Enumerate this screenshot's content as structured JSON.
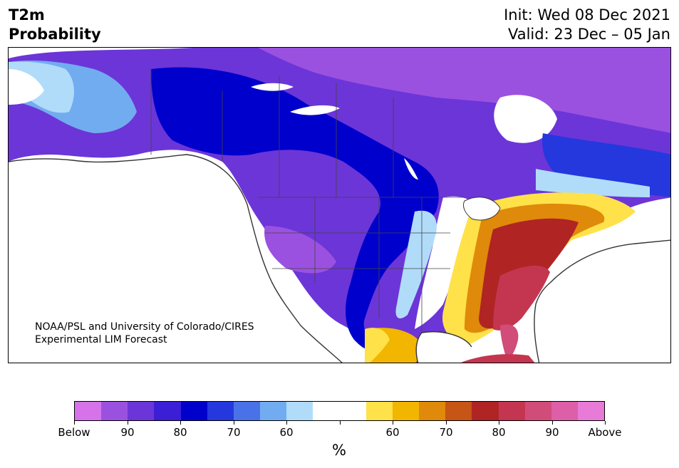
{
  "header": {
    "title_line1": "T2m",
    "title_line2": "Probability",
    "init": "Init: Wed 08 Dec 2021",
    "valid": "Valid: 23 Dec – 05 Jan"
  },
  "credit": {
    "line1": "NOAA/PSL and University of Colorado/CIRES",
    "line2": "Experimental LIM Forecast"
  },
  "colorbar": {
    "colors": [
      "#d673ea",
      "#9b51e0",
      "#6c35d8",
      "#3a1fd6",
      "#0000cc",
      "#2438de",
      "#4a72e8",
      "#72acf0",
      "#b0dcfa",
      "#ffffff",
      "#ffffff",
      "#ffe14a",
      "#f2b500",
      "#df8a0a",
      "#c65516",
      "#b02424",
      "#c43650",
      "#d14c78",
      "#dc5fa8",
      "#e87ad8"
    ],
    "tick_labels": [
      "Below",
      "90",
      "80",
      "70",
      "60",
      "",
      "60",
      "70",
      "80",
      "90",
      "Above"
    ],
    "unit": "%"
  },
  "legend_meaning": {
    "left": "Below",
    "right": "Above"
  }
}
